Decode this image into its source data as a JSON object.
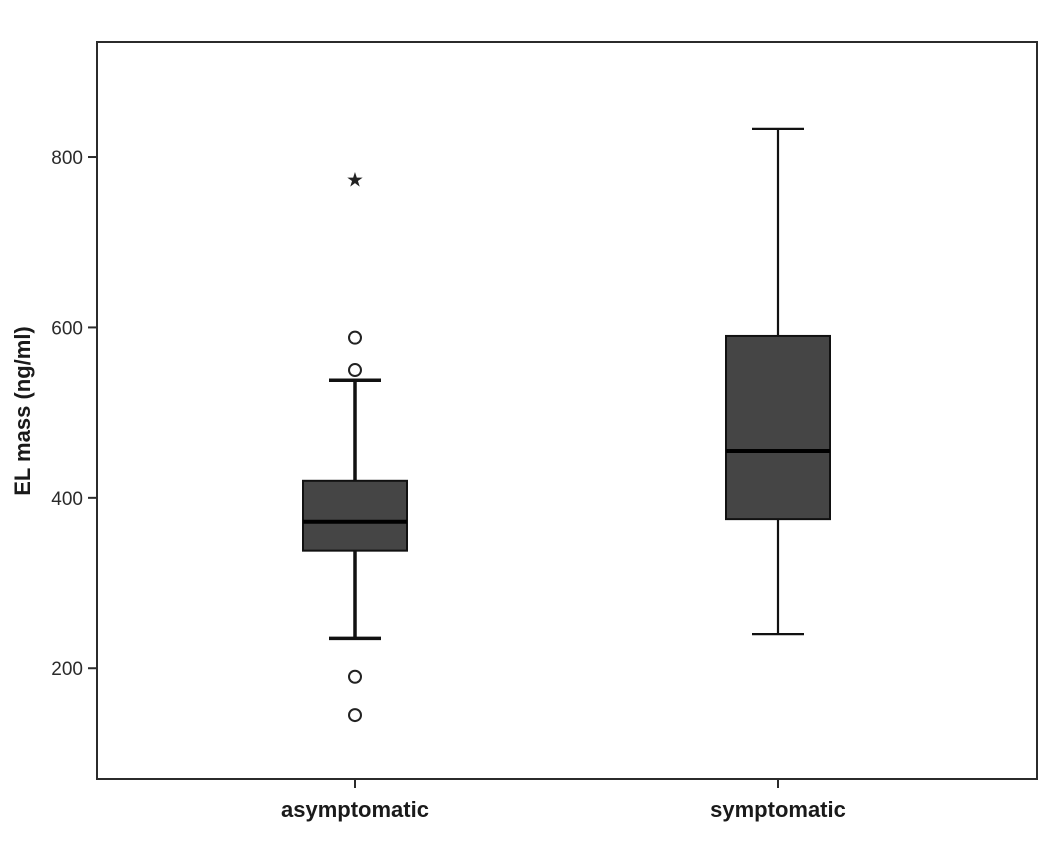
{
  "chart_data": {
    "type": "box",
    "title": "",
    "xlabel": "",
    "ylabel": "EL mass (ng/ml)",
    "ylim": [
      70,
      935
    ],
    "yticks": [
      200,
      400,
      600,
      800
    ],
    "grid": false,
    "box_color": "#454545",
    "categories": [
      "asymptomatic",
      "symptomatic"
    ],
    "boxes": [
      {
        "category": "asymptomatic",
        "whisker_low": 235,
        "q1": 338,
        "median": 372,
        "q3": 420,
        "whisker_high": 538,
        "outliers": [
          588,
          550,
          190,
          145
        ],
        "extremes": [
          775
        ]
      },
      {
        "category": "symptomatic",
        "whisker_low": 240,
        "q1": 375,
        "median": 455,
        "q3": 590,
        "whisker_high": 833,
        "outliers": [],
        "extremes": []
      }
    ]
  }
}
